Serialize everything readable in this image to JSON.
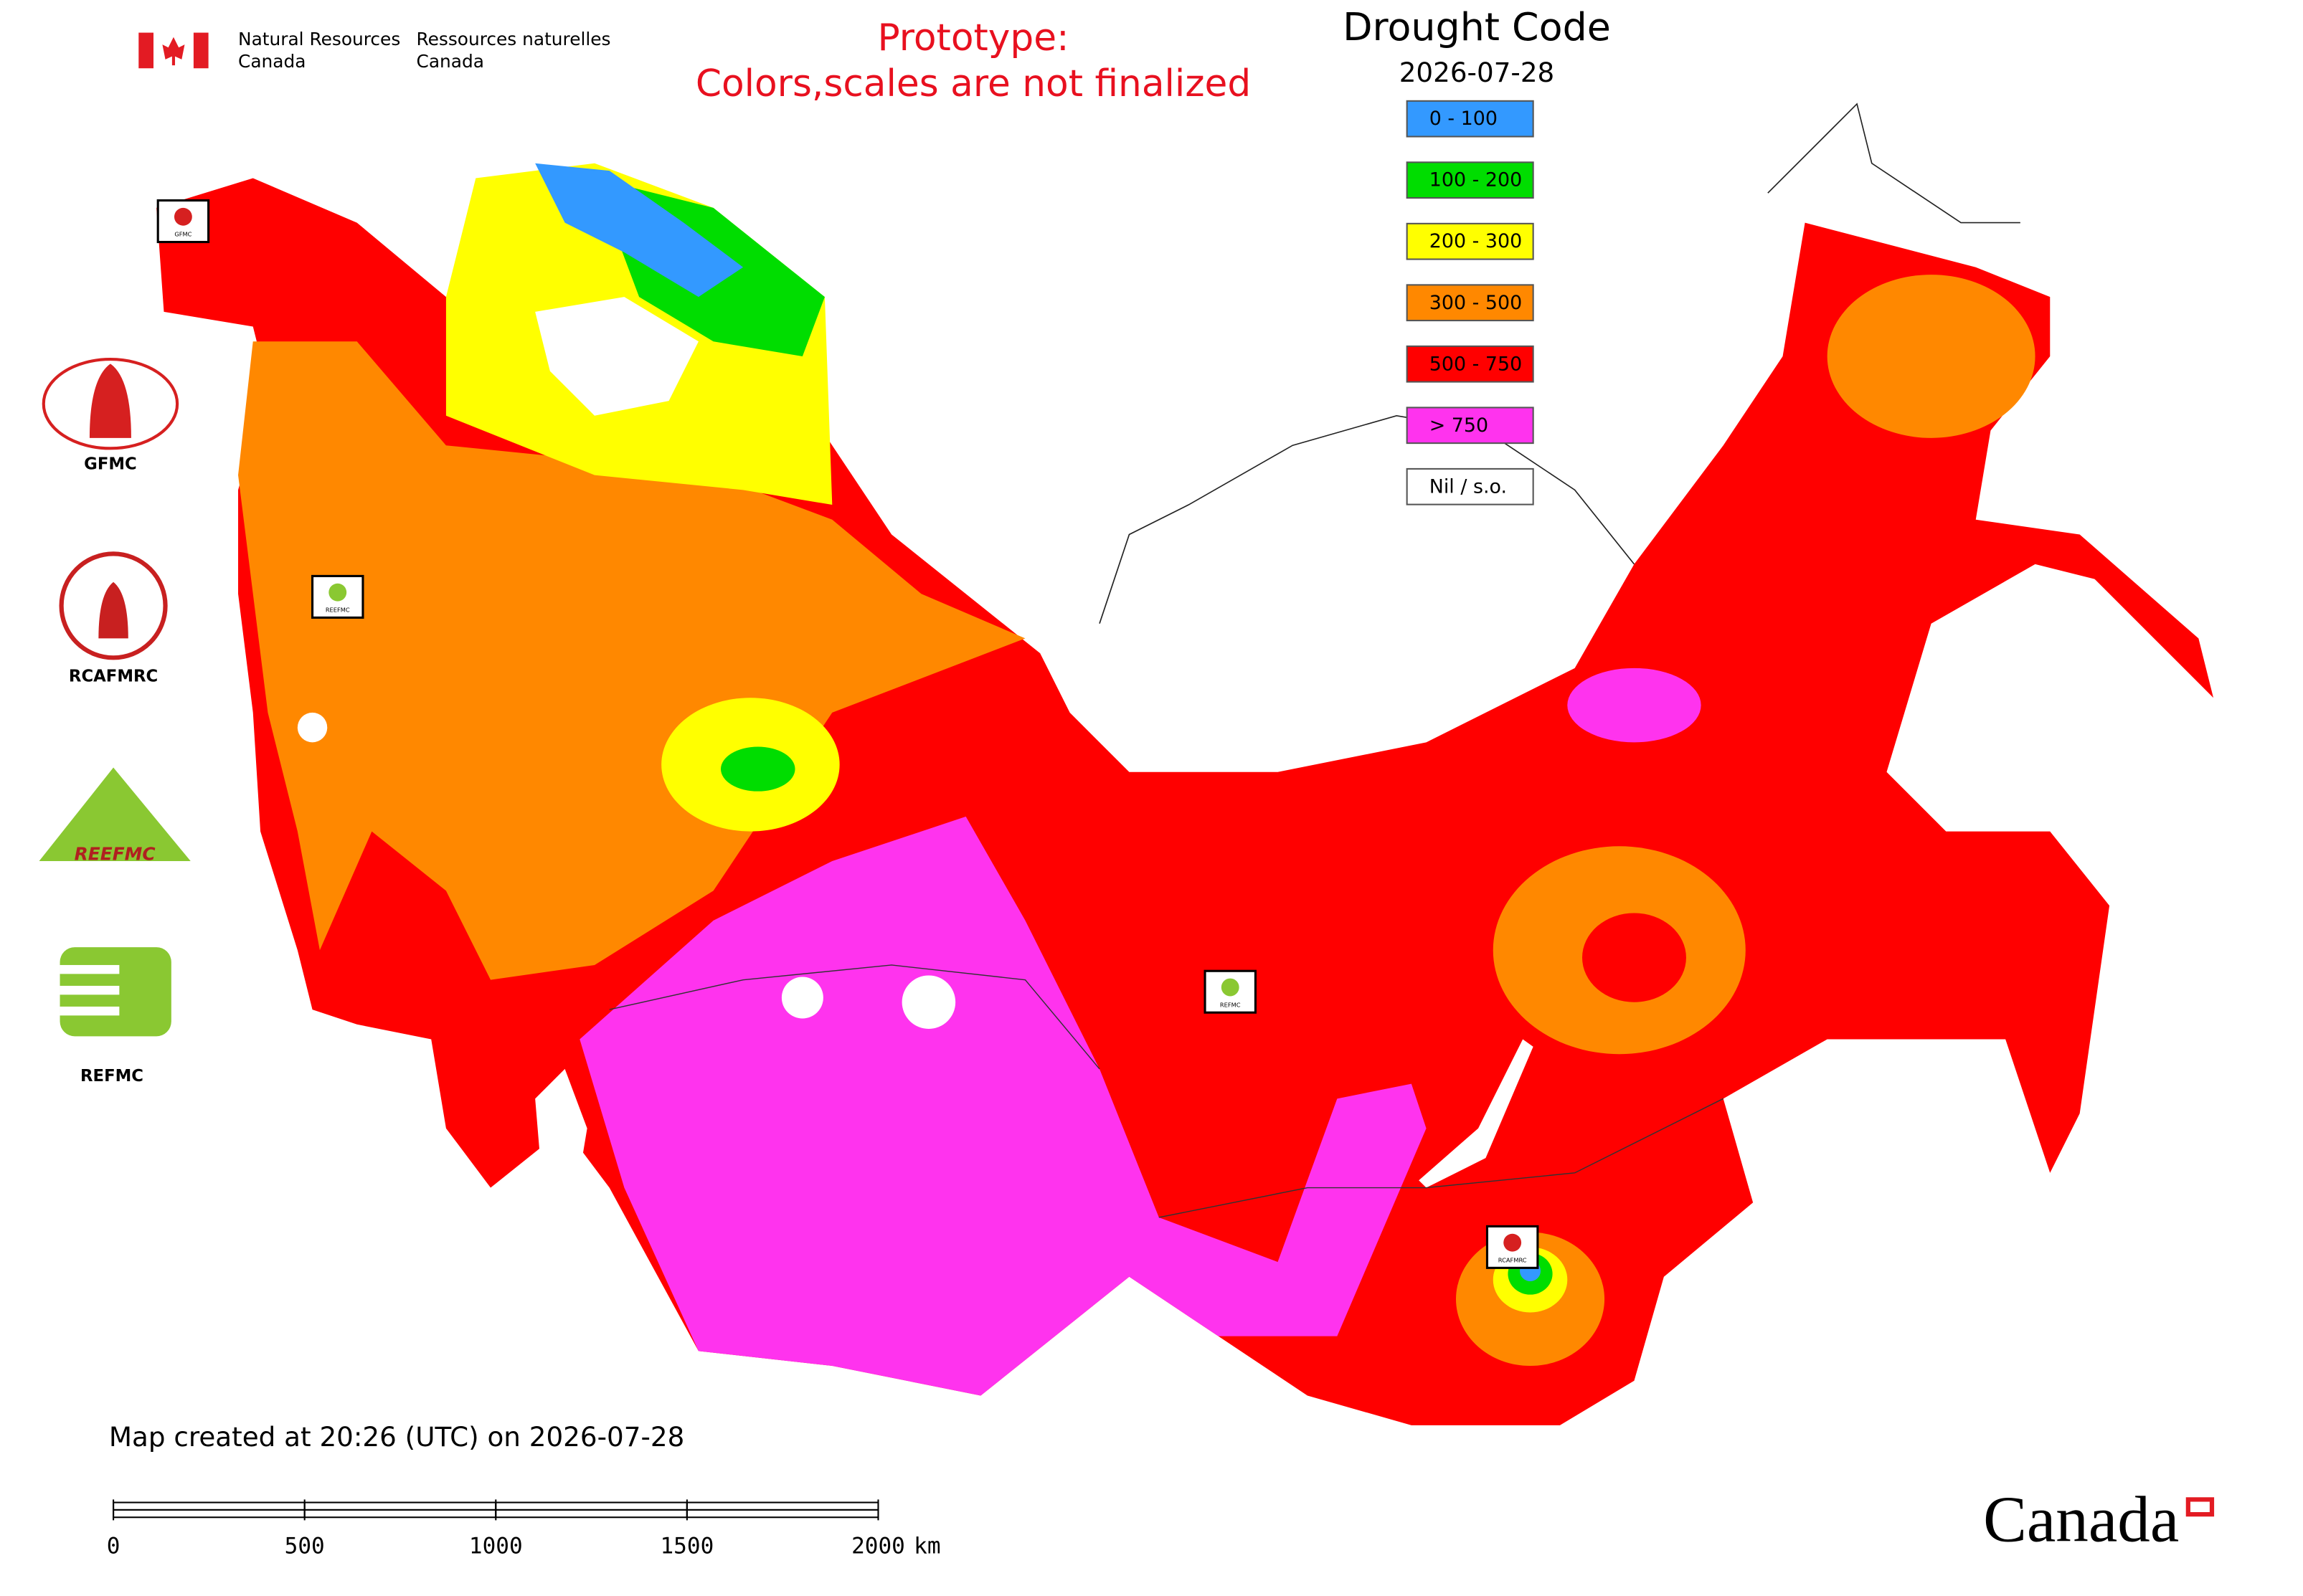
{
  "header": {
    "agency_en": [
      "Natural Resources",
      "Canada"
    ],
    "agency_fr": [
      "Ressources naturelles",
      "Canada"
    ]
  },
  "notice": [
    "Prototype:",
    "Colors,scales are not finalized"
  ],
  "legend": {
    "title": "Drought Code",
    "date": "2026-07-28",
    "items": [
      {
        "label": "0 - 100",
        "color": "#3399ff"
      },
      {
        "label": "100 - 200",
        "color": "#00dd00"
      },
      {
        "label": "200 - 300",
        "color": "#ffff00"
      },
      {
        "label": "300 - 500",
        "color": "#ff8800"
      },
      {
        "label": "500 - 750",
        "color": "#ff0000"
      },
      {
        "label": "> 750",
        "color": "#ff33ee"
      },
      {
        "label": "Nil / s.o.",
        "color": "#ffffff"
      }
    ]
  },
  "logos": {
    "gfmc": "GFMC",
    "rcafmrc": "RCAFMRC",
    "reefmc": "REEFMC",
    "refmc": "REFMC"
  },
  "map_markers": [
    "GFMC",
    "REEFMC",
    "REFMC",
    "RCAFMRC"
  ],
  "footer": {
    "created": "Map created at 20:26 (UTC) on 2026-07-28",
    "wordmark": "Canada"
  },
  "scale_bar": {
    "ticks": [
      0,
      500,
      1000,
      1500,
      2000
    ],
    "unit": "km"
  }
}
